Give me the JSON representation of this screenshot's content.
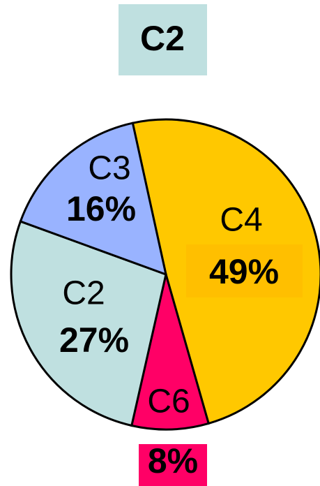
{
  "chart_data": {
    "type": "pie",
    "title": "C2",
    "categories": [
      "C4",
      "C6",
      "C2",
      "C3"
    ],
    "values": [
      49,
      8,
      27,
      16
    ],
    "value_labels": [
      "49%",
      "8%",
      "27%",
      "16%"
    ],
    "colors": [
      "#ffc800",
      "#ff0066",
      "#bfe0e0",
      "#99b3ff"
    ]
  }
}
